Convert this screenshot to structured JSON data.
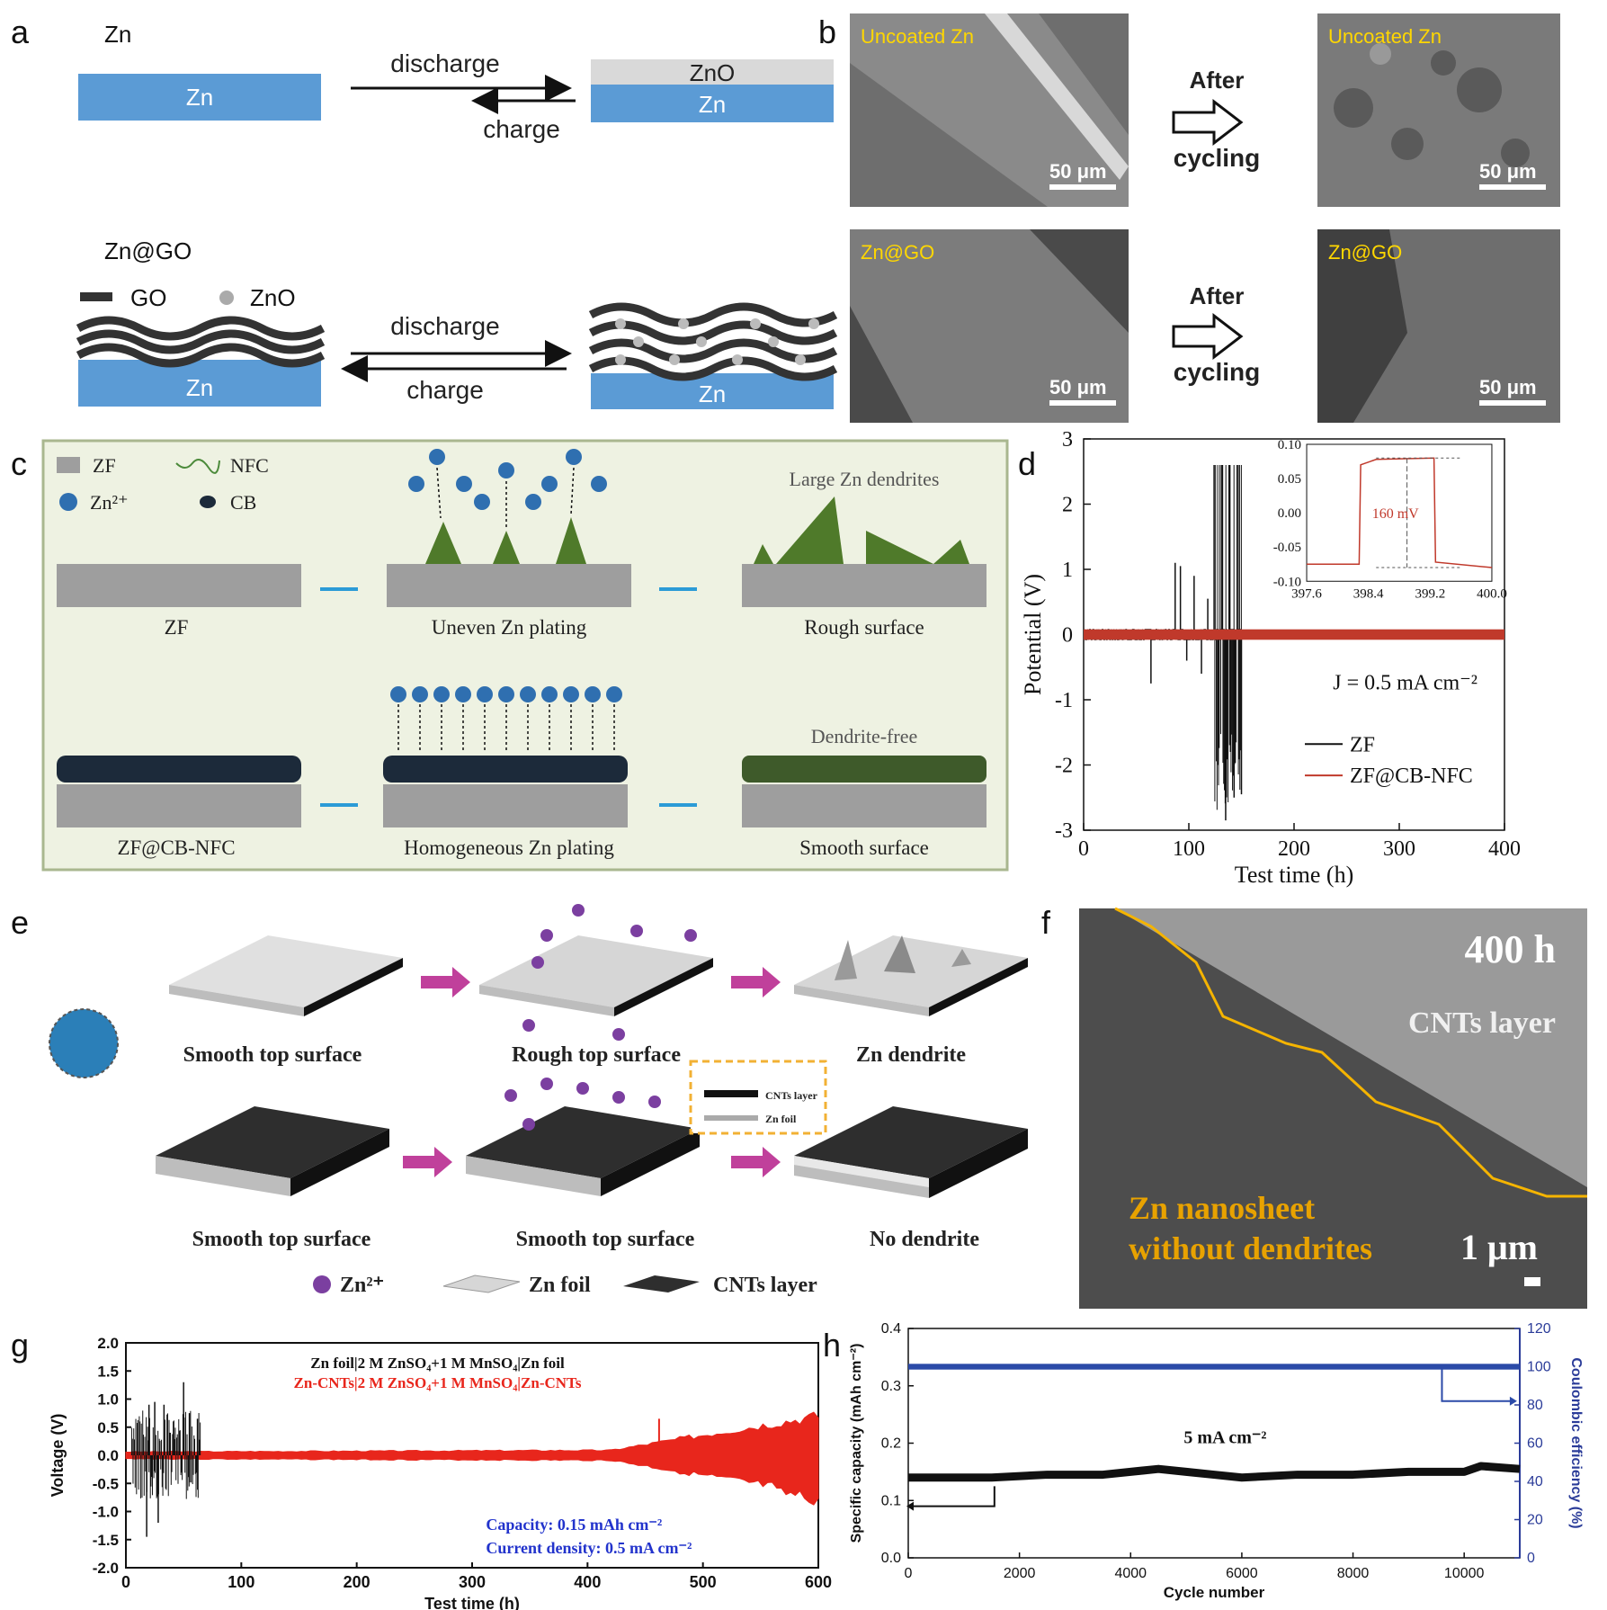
{
  "letters": {
    "a": "a",
    "b": "b",
    "c": "c",
    "d": "d",
    "e": "e",
    "f": "f",
    "g": "g",
    "h": "h"
  },
  "panel_a": {
    "top_title": "Zn",
    "zn": "Zn",
    "zno": "ZnO",
    "discharge": "discharge",
    "charge": "charge",
    "bottom_title": "Zn@GO",
    "legend_go": "GO",
    "legend_zno": "ZnO"
  },
  "panel_b": {
    "uncoated": "Uncoated Zn",
    "zngo": "Zn@GO",
    "after": "After",
    "cycling": "cycling",
    "scale": "50 μm"
  },
  "panel_c": {
    "legend_zf": "ZF",
    "legend_nfc": "NFC",
    "legend_zn": "Zn²⁺",
    "legend_cb": "CB",
    "large_dendrites": "Large Zn dendrites",
    "dendrite_free": "Dendrite-free",
    "top_labels": [
      "ZF",
      "Uneven Zn plating",
      "Rough surface"
    ],
    "bottom_labels": [
      "ZF@CB-NFC",
      "Homogeneous Zn plating",
      "Smooth surface"
    ]
  },
  "panel_e": {
    "top_labels": [
      "Smooth top surface",
      "Rough top surface",
      "Zn dendrite"
    ],
    "bottom_labels": [
      "Smooth top surface",
      "Smooth top surface",
      "No dendrite"
    ],
    "legend": [
      "Zn²⁺",
      "Zn foil",
      "CNTs layer"
    ],
    "inset_cnt": "CNTs layer",
    "inset_foil": "Zn foil"
  },
  "panel_f": {
    "time": "400 h",
    "layer": "CNTs layer",
    "nano1": "Zn nanosheet",
    "nano2": "without dendrites",
    "scale": "1 μm"
  },
  "chart_data": [
    {
      "id": "d",
      "type": "line",
      "xlabel": "Test time (h)",
      "ylabel": "Potential (V)",
      "xlim": [
        0,
        400
      ],
      "ylim": [
        -3,
        3
      ],
      "xticks": [
        0,
        100,
        200,
        300,
        400
      ],
      "yticks": [
        -3,
        -2,
        -1,
        0,
        1,
        2,
        3
      ],
      "annotation": "J = 0.5 mA cm⁻²",
      "series": [
        {
          "name": "ZF",
          "color": "#111111"
        },
        {
          "name": "ZF@CB-NFC",
          "color": "#c0392b"
        }
      ],
      "zf_spikes": [
        [
          64,
          -0.75
        ],
        [
          87,
          1.1
        ],
        [
          92,
          1.05
        ],
        [
          98,
          -0.4
        ],
        [
          105,
          0.9
        ],
        [
          112,
          -0.6
        ],
        [
          118,
          0.55
        ],
        [
          124,
          2.6
        ],
        [
          128,
          -2.0
        ],
        [
          132,
          2.6
        ],
        [
          135,
          -2.85
        ],
        [
          139,
          2.6
        ],
        [
          143,
          -2.5
        ],
        [
          148,
          2.6
        ],
        [
          150,
          -2.45
        ]
      ],
      "zf_end": 150,
      "inset": {
        "xlim": [
          397.6,
          400.0
        ],
        "ylim": [
          -0.1,
          0.1
        ],
        "xticks": [
          397.6,
          398.4,
          399.2,
          400.0
        ],
        "yticks": [
          -0.1,
          -0.05,
          0.0,
          0.05,
          0.1
        ],
        "label": "160 mV"
      }
    },
    {
      "id": "g",
      "type": "line",
      "xlabel": "Test time (h)",
      "ylabel": "Voltage (V)",
      "xlim": [
        0,
        600
      ],
      "ylim": [
        -2.0,
        2.0
      ],
      "xticks": [
        0,
        100,
        200,
        300,
        400,
        500,
        600
      ],
      "yticks": [
        -2.0,
        -1.5,
        -1.0,
        -0.5,
        0.0,
        0.5,
        1.0,
        1.5,
        2.0
      ],
      "legend1": "Zn foil|2 M ZnSO₄+1 M MnSO₄|Zn foil",
      "legend2": "Zn-CNTs|2 M ZnSO₄+1 M MnSO₄|Zn-CNTs",
      "note1": "Capacity: 0.15 mAh cm⁻²",
      "note2": "Current density:  0.5 mA cm⁻²",
      "series": [
        {
          "name": "Zn foil",
          "color": "#111111",
          "end": 65
        },
        {
          "name": "Zn-CNTs",
          "color": "#e8261c",
          "end": 600
        }
      ],
      "foil_spikes": [
        [
          18,
          -1.45
        ],
        [
          20,
          0.9
        ],
        [
          25,
          0.95
        ],
        [
          28,
          -1.2
        ],
        [
          33,
          0.9
        ],
        [
          50,
          1.3
        ],
        [
          55,
          0.75
        ],
        [
          62,
          0.65
        ]
      ],
      "cnt_spike": [
        462,
        0.65
      ]
    },
    {
      "id": "h",
      "type": "scatter",
      "xlabel": "Cycle number",
      "ylabel": "Specific capacity (mAh cm⁻²)",
      "y2label": "Coulombic efficiency (%)",
      "xlim": [
        0,
        11000
      ],
      "ylim": [
        0,
        0.4
      ],
      "y2lim": [
        0,
        120
      ],
      "xticks": [
        0,
        2000,
        4000,
        6000,
        8000,
        10000
      ],
      "yticks": [
        0.0,
        0.1,
        0.2,
        0.3,
        0.4
      ],
      "y2ticks": [
        0,
        20,
        40,
        60,
        80,
        100,
        120
      ],
      "annotation": "5 mA cm⁻²",
      "capacity": [
        [
          0,
          0.14
        ],
        [
          500,
          0.14
        ],
        [
          1000,
          0.14
        ],
        [
          1500,
          0.14
        ],
        [
          2500,
          0.145
        ],
        [
          3500,
          0.145
        ],
        [
          4500,
          0.155
        ],
        [
          5000,
          0.15
        ],
        [
          5500,
          0.145
        ],
        [
          6000,
          0.14
        ],
        [
          7000,
          0.145
        ],
        [
          8000,
          0.145
        ],
        [
          9000,
          0.15
        ],
        [
          10000,
          0.15
        ],
        [
          10300,
          0.16
        ],
        [
          11000,
          0.155
        ]
      ],
      "efficiency": 100
    }
  ]
}
